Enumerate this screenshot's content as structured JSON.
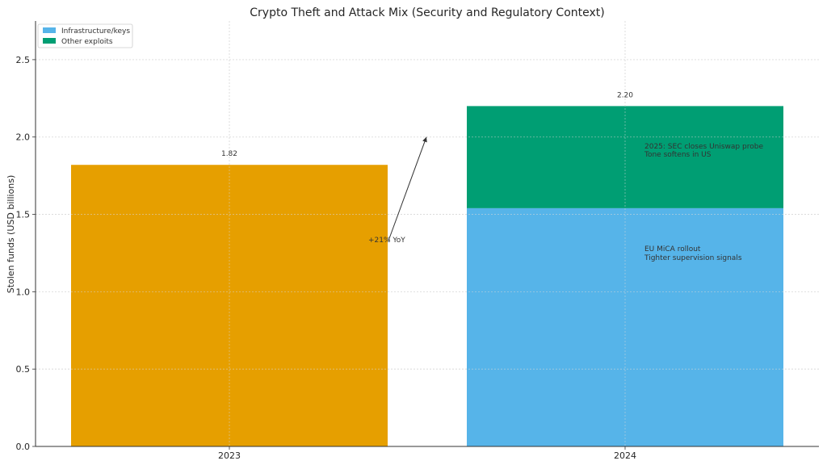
{
  "chart_data": {
    "type": "bar",
    "title": "Crypto Theft and Attack Mix (Security and Regulatory Context)",
    "xlabel": "",
    "ylabel": "Stolen funds (USD billions)",
    "ylim": [
      0,
      2.75
    ],
    "yticks": [
      "0.0",
      "0.5",
      "1.0",
      "1.5",
      "2.0",
      "2.5"
    ],
    "grid": true,
    "legend_position": "top-left",
    "categories": [
      "2023",
      "2024"
    ],
    "total_2023": {
      "value": 1.82,
      "label": "1.82",
      "color": "#E69F00"
    },
    "series": [
      {
        "name": "Infrastructure/keys",
        "color": "#56B4E9",
        "values": [
          null,
          1.54
        ]
      },
      {
        "name": "Other exploits",
        "color": "#009E73",
        "values": [
          null,
          0.66
        ]
      }
    ],
    "totals_labels": [
      "1.82",
      "2.20"
    ],
    "annotations": {
      "yoy": {
        "text": "+21% YoY"
      },
      "sec": {
        "line1": "2025: SEC closes Uniswap probe",
        "line2": "Tone softens in US"
      },
      "mica": {
        "line1": "EU MiCA rollout",
        "line2": "Tighter supervision signals"
      }
    }
  }
}
